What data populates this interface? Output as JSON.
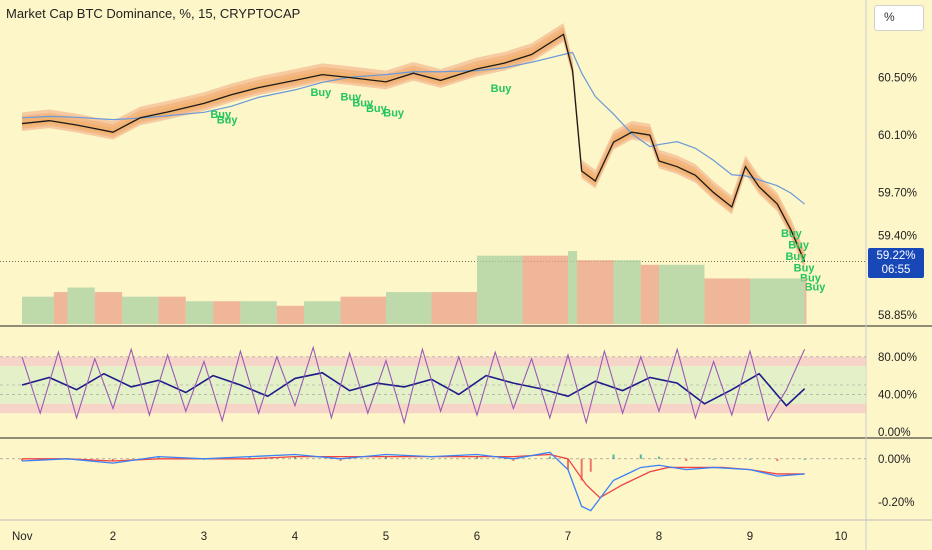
{
  "header": {
    "title": "Market Cap BTC Dominance, %, 15, CRYPTOCAP"
  },
  "unit_selector": {
    "label": "%"
  },
  "price_badge": {
    "value": "59.22%",
    "countdown": "06:55"
  },
  "colors": {
    "background": "#fdf6c8",
    "badge": "#1848b8",
    "buy_text": "#22c55e",
    "osc_primary": "#1e1b8a",
    "osc_secondary": "#9b59b6",
    "macd_line": "#3b82f6",
    "signal_line": "#ef4444",
    "ma_line": "#6a9ad8"
  },
  "chart_data": [
    {
      "type": "line",
      "title": "Market Cap BTC Dominance, %, 15, CRYPTOCAP",
      "x_tick_labels": [
        "Nov",
        "2",
        "3",
        "4",
        "5",
        "6",
        "7",
        "8",
        "9",
        "10"
      ],
      "y_tick_labels": [
        "60.50%",
        "60.10%",
        "59.70%",
        "59.40%",
        "58.85%"
      ],
      "ylim": [
        58.8,
        60.9
      ],
      "last_value": 59.22,
      "series": [
        {
          "x": [
            1.0,
            1.3,
            1.6,
            2.0,
            2.3,
            2.6,
            3.0,
            3.3,
            3.6,
            4.0,
            4.3,
            4.6,
            5.0,
            5.3,
            5.6,
            6.0,
            6.3,
            6.6,
            6.95,
            7.05,
            7.15,
            7.3,
            7.5,
            7.7,
            7.9,
            8.0,
            8.2,
            8.4,
            8.6,
            8.8,
            8.95,
            9.1,
            9.3,
            9.45,
            9.6
          ],
          "values": [
            60.18,
            60.2,
            60.17,
            60.12,
            60.22,
            60.26,
            60.32,
            60.38,
            60.43,
            60.48,
            60.52,
            60.5,
            60.47,
            60.53,
            60.48,
            60.56,
            60.6,
            60.66,
            60.8,
            60.55,
            59.85,
            59.78,
            60.05,
            60.12,
            60.1,
            59.92,
            59.88,
            59.82,
            59.7,
            59.6,
            59.88,
            59.74,
            59.62,
            59.44,
            59.22
          ]
        }
      ],
      "annotations": [
        {
          "text": "Buy",
          "x": 3.07,
          "y": 60.22
        },
        {
          "text": "Buy",
          "x": 3.14,
          "y": 60.18
        },
        {
          "text": "Buy",
          "x": 4.17,
          "y": 60.37
        },
        {
          "text": "Buy",
          "x": 4.5,
          "y": 60.34
        },
        {
          "text": "Buy",
          "x": 4.63,
          "y": 60.3
        },
        {
          "text": "Buy",
          "x": 4.78,
          "y": 60.26
        },
        {
          "text": "Buy",
          "x": 4.97,
          "y": 60.23
        },
        {
          "text": "Buy",
          "x": 6.15,
          "y": 60.4
        },
        {
          "text": "Buy",
          "x": 9.34,
          "y": 59.39
        },
        {
          "text": "Buy",
          "x": 9.42,
          "y": 59.31
        },
        {
          "text": "Buy",
          "x": 9.39,
          "y": 59.23
        },
        {
          "text": "Buy",
          "x": 9.48,
          "y": 59.15
        },
        {
          "text": "Buy",
          "x": 9.55,
          "y": 59.08
        },
        {
          "text": "Buy",
          "x": 9.6,
          "y": 59.02
        }
      ]
    },
    {
      "type": "bar",
      "title": "",
      "x": [
        1.0,
        1.35,
        1.5,
        1.8,
        2.1,
        2.5,
        2.8,
        3.1,
        3.4,
        3.8,
        4.1,
        4.5,
        5.0,
        5.5,
        6.0,
        6.5,
        7.0,
        7.1,
        7.5,
        7.8,
        8.0,
        8.5,
        9.0,
        9.6
      ],
      "values": [
        6,
        7,
        8,
        7,
        6,
        6,
        5,
        5,
        5,
        4,
        5,
        6,
        7,
        7,
        15,
        15,
        16,
        14,
        14,
        13,
        13,
        10,
        10,
        10
      ]
    },
    {
      "type": "line",
      "title": "",
      "y_tick_labels": [
        "80.00%",
        "40.00%",
        "0.00%"
      ],
      "ylim": [
        0,
        100
      ],
      "bands": [
        [
          70,
          80
        ],
        [
          30,
          70
        ],
        [
          20,
          30
        ]
      ],
      "series": [
        {
          "x": [
            1.0,
            1.3,
            1.6,
            1.9,
            2.2,
            2.5,
            2.8,
            3.1,
            3.4,
            3.7,
            4.0,
            4.3,
            4.6,
            4.9,
            5.2,
            5.5,
            5.8,
            6.1,
            6.4,
            6.7,
            7.0,
            7.3,
            7.6,
            7.9,
            8.2,
            8.5,
            8.8,
            9.1,
            9.4,
            9.6
          ],
          "values": [
            50,
            58,
            45,
            62,
            48,
            55,
            42,
            60,
            50,
            38,
            57,
            63,
            44,
            52,
            48,
            56,
            40,
            60,
            52,
            46,
            38,
            54,
            44,
            58,
            52,
            30,
            45,
            62,
            28,
            46
          ]
        },
        {
          "x": [
            1.0,
            1.2,
            1.4,
            1.6,
            1.8,
            2.0,
            2.2,
            2.4,
            2.6,
            2.8,
            3.0,
            3.2,
            3.4,
            3.6,
            3.8,
            4.0,
            4.2,
            4.4,
            4.6,
            4.8,
            5.0,
            5.2,
            5.4,
            5.6,
            5.8,
            6.0,
            6.2,
            6.4,
            6.6,
            6.8,
            7.0,
            7.2,
            7.4,
            7.6,
            7.8,
            8.0,
            8.2,
            8.4,
            8.6,
            8.8,
            9.0,
            9.2,
            9.4,
            9.6
          ],
          "values": [
            80,
            20,
            85,
            15,
            78,
            25,
            88,
            18,
            82,
            22,
            75,
            12,
            86,
            20,
            80,
            28,
            90,
            15,
            84,
            20,
            76,
            10,
            88,
            22,
            80,
            18,
            85,
            25,
            78,
            15,
            82,
            10,
            86,
            20,
            80,
            22,
            88,
            15,
            75,
            18,
            86,
            12,
            45,
            88
          ]
        }
      ]
    },
    {
      "type": "line",
      "title": "",
      "y_tick_labels": [
        "0.00%",
        "-0.20%"
      ],
      "ylim": [
        -0.26,
        0.05
      ],
      "series": [
        {
          "x": [
            1.0,
            1.5,
            2.0,
            2.5,
            3.0,
            3.5,
            4.0,
            4.5,
            5.0,
            5.5,
            6.0,
            6.4,
            6.8,
            7.0,
            7.15,
            7.25,
            7.5,
            7.8,
            8.0,
            8.3,
            8.6,
            9.0,
            9.3,
            9.6
          ],
          "values": [
            -0.01,
            0.0,
            -0.02,
            0.01,
            0.0,
            0.01,
            0.02,
            0.0,
            0.02,
            0.01,
            0.02,
            0.0,
            0.03,
            -0.05,
            -0.22,
            -0.24,
            -0.1,
            -0.04,
            -0.03,
            -0.05,
            -0.04,
            -0.05,
            -0.08,
            -0.07
          ]
        },
        {
          "x": [
            1.0,
            1.5,
            2.0,
            2.5,
            3.0,
            3.5,
            4.0,
            4.5,
            5.0,
            5.5,
            6.0,
            6.4,
            6.8,
            7.0,
            7.2,
            7.35,
            7.6,
            7.9,
            8.1,
            8.4,
            8.7,
            9.0,
            9.3,
            9.6
          ],
          "values": [
            0.0,
            0.0,
            -0.01,
            0.0,
            0.0,
            0.0,
            0.01,
            0.01,
            0.01,
            0.01,
            0.01,
            0.01,
            0.02,
            0.0,
            -0.12,
            -0.18,
            -0.12,
            -0.06,
            -0.04,
            -0.04,
            -0.04,
            -0.05,
            -0.07,
            -0.07
          ]
        }
      ]
    }
  ]
}
